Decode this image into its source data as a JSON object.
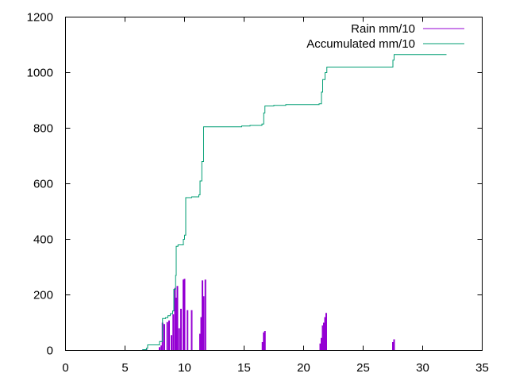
{
  "chart_data": {
    "type": "line",
    "title": "",
    "xlabel": "",
    "ylabel": "",
    "xlim": [
      0,
      35
    ],
    "ylim": [
      0,
      1200
    ],
    "xticks": [
      "0",
      "5",
      "10",
      "15",
      "20",
      "25",
      "30",
      "35"
    ],
    "yticks": [
      "0",
      "200",
      "400",
      "600",
      "800",
      "1000",
      "1200"
    ],
    "grid": false,
    "legend_position": "top-right",
    "series": [
      {
        "name": "Rain mm/10",
        "style": "impulses",
        "color": "#9400d3",
        "points": [
          [
            6.5,
            3
          ],
          [
            6.8,
            5
          ],
          [
            7.9,
            12
          ],
          [
            8.05,
            18
          ],
          [
            8.15,
            100
          ],
          [
            8.3,
            95
          ],
          [
            8.55,
            102
          ],
          [
            8.7,
            108
          ],
          [
            8.9,
            55
          ],
          [
            9.05,
            130
          ],
          [
            9.2,
            225
          ],
          [
            9.3,
            190
          ],
          [
            9.4,
            232
          ],
          [
            9.55,
            80
          ],
          [
            9.7,
            150
          ],
          [
            9.9,
            255
          ],
          [
            10.0,
            258
          ],
          [
            10.25,
            145
          ],
          [
            10.6,
            145
          ],
          [
            11.3,
            60
          ],
          [
            11.4,
            120
          ],
          [
            11.5,
            252
          ],
          [
            11.6,
            195
          ],
          [
            11.75,
            255
          ],
          [
            16.55,
            30
          ],
          [
            16.65,
            65
          ],
          [
            16.75,
            70
          ],
          [
            21.4,
            25
          ],
          [
            21.5,
            45
          ],
          [
            21.6,
            90
          ],
          [
            21.7,
            100
          ],
          [
            21.8,
            120
          ],
          [
            21.9,
            135
          ],
          [
            27.5,
            30
          ],
          [
            27.6,
            40
          ]
        ]
      },
      {
        "name": "Accumulated mm/10",
        "style": "steps",
        "color": "#009e73",
        "points": [
          [
            5.5,
            0
          ],
          [
            6.5,
            3
          ],
          [
            6.8,
            8
          ],
          [
            6.9,
            20
          ],
          [
            7.9,
            32
          ],
          [
            8.15,
            115
          ],
          [
            8.4,
            118
          ],
          [
            8.6,
            125
          ],
          [
            8.8,
            132
          ],
          [
            9.0,
            142
          ],
          [
            9.1,
            220
          ],
          [
            9.25,
            270
          ],
          [
            9.3,
            375
          ],
          [
            9.45,
            380
          ],
          [
            9.9,
            400
          ],
          [
            10.0,
            415
          ],
          [
            10.1,
            550
          ],
          [
            10.6,
            553
          ],
          [
            11.2,
            560
          ],
          [
            11.3,
            610
          ],
          [
            11.45,
            680
          ],
          [
            11.6,
            805
          ],
          [
            14.8,
            808
          ],
          [
            15.5,
            810
          ],
          [
            16.5,
            815
          ],
          [
            16.65,
            855
          ],
          [
            16.75,
            880
          ],
          [
            17.5,
            882
          ],
          [
            18.5,
            885
          ],
          [
            21.3,
            888
          ],
          [
            21.5,
            930
          ],
          [
            21.6,
            975
          ],
          [
            21.8,
            1000
          ],
          [
            21.95,
            1020
          ],
          [
            27.5,
            1045
          ],
          [
            27.6,
            1065
          ],
          [
            32.0,
            1065
          ]
        ]
      }
    ]
  }
}
